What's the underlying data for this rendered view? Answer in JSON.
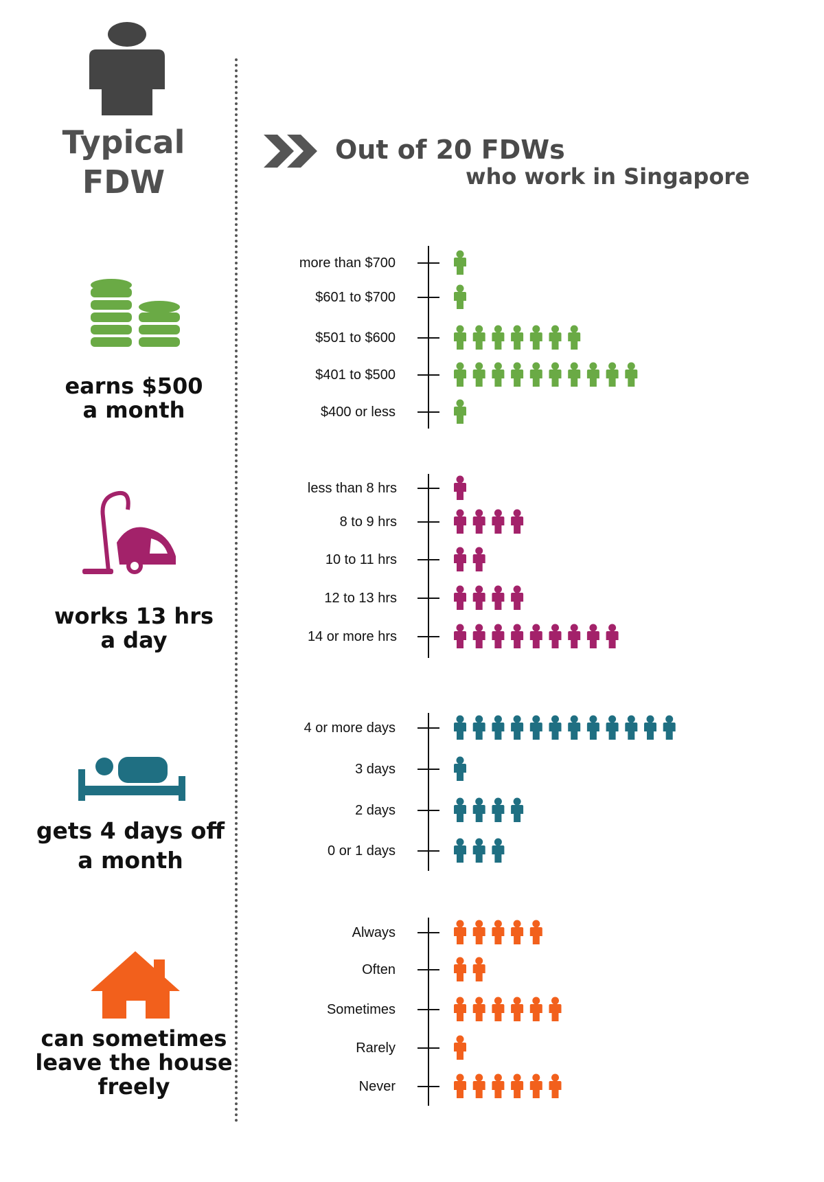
{
  "left_title": [
    "Typical",
    "FDW"
  ],
  "header": {
    "line1": "Out of 20 FDWs",
    "line2": "who work in Singapore"
  },
  "colors": {
    "person_icon": "#444444",
    "salary": "#6aaa45",
    "hours": "#a3226a",
    "days_off": "#1f6f82",
    "leave": "#f2601c",
    "axis": "#111111",
    "divider": "#555555",
    "arrow": "#555555"
  },
  "captions": {
    "salary": "earns $500\n a month",
    "hours": "works 13 hrs\na day",
    "days_off": "gets 4 days off\na month",
    "leave": "can sometimes\nleave the house\nfreely"
  },
  "chart_data": [
    {
      "type": "bar",
      "categories": [
        "more than $700",
        "$601 to $700",
        "$501 to $600",
        "$401 to $500",
        "$400 or less"
      ],
      "values": [
        1,
        1,
        7,
        10,
        1
      ],
      "color": "#6aaa45",
      "icon": "coin-stack-icon"
    },
    {
      "type": "bar",
      "categories": [
        "less than 8 hrs",
        "8 to 9 hrs",
        "10 to 11 hrs",
        "12 to 13 hrs",
        "14 or more hrs"
      ],
      "values": [
        1,
        4,
        2,
        4,
        9
      ],
      "color": "#a3226a",
      "icon": "vacuum-cleaner-icon"
    },
    {
      "type": "bar",
      "categories": [
        "4 or more days",
        "3 days",
        "2 days",
        "0 or 1 days"
      ],
      "values": [
        12,
        1,
        4,
        3
      ],
      "color": "#1f6f82",
      "icon": "bed-icon"
    },
    {
      "type": "bar",
      "categories": [
        "Always",
        "Often",
        "Sometimes",
        "Rarely",
        "Never"
      ],
      "values": [
        5,
        2,
        6,
        1,
        6
      ],
      "color": "#f2601c",
      "icon": "house-icon"
    }
  ]
}
